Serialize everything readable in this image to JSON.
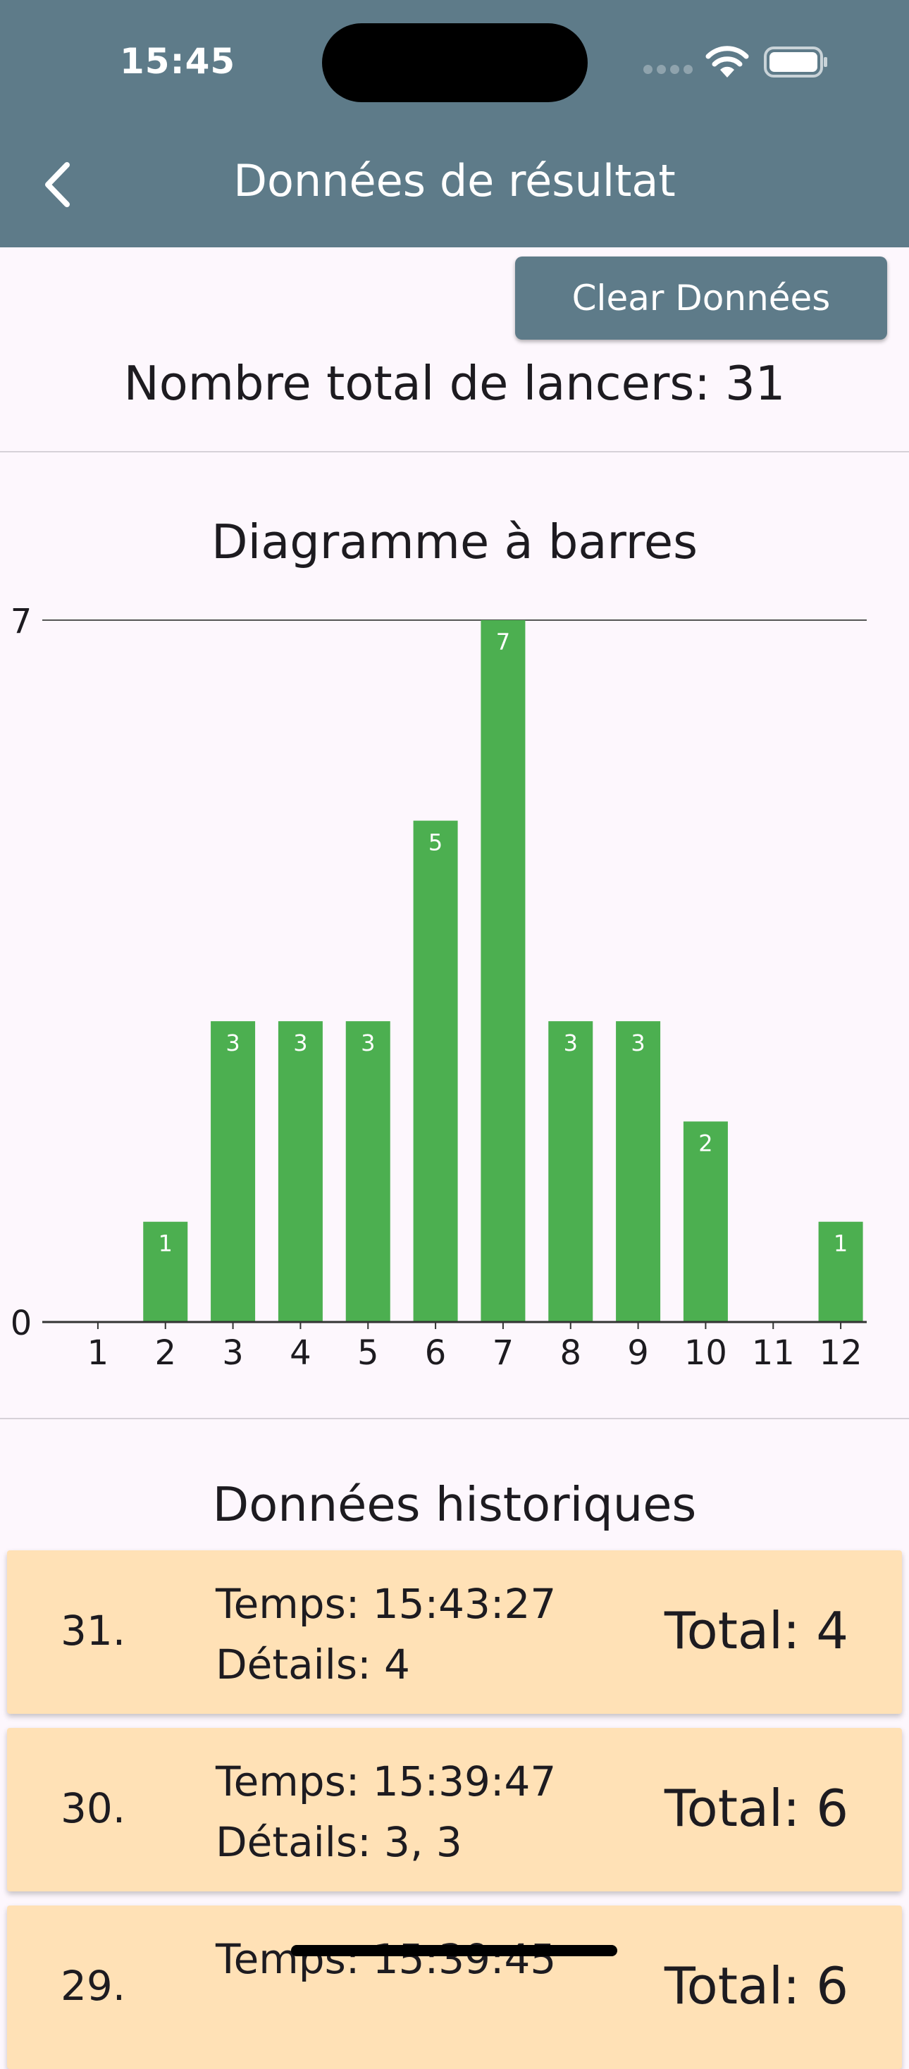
{
  "status_bar": {
    "time": "15:45"
  },
  "header": {
    "title": "Données de résultat"
  },
  "toolbar": {
    "clear_label": "Clear Données"
  },
  "summary": {
    "total_throws": "Nombre total de lancers: 31"
  },
  "chart_section": {
    "title": "Diagramme à barres"
  },
  "chart_data": {
    "type": "bar",
    "title": "Diagramme à barres",
    "categories": [
      "1",
      "2",
      "3",
      "4",
      "5",
      "6",
      "7",
      "8",
      "9",
      "10",
      "11",
      "12"
    ],
    "values": [
      0,
      1,
      3,
      3,
      3,
      5,
      7,
      3,
      3,
      2,
      0,
      1
    ],
    "ylim": [
      0,
      7
    ],
    "y_ticks": [
      "0",
      "7"
    ],
    "bar_color": "#4caf50",
    "grid": false
  },
  "history": {
    "title": "Données historiques",
    "items": [
      {
        "index": "31.",
        "time": "Temps: 15:43:27",
        "details": "Détails: 4",
        "total": "Total: 4"
      },
      {
        "index": "30.",
        "time": "Temps: 15:39:47",
        "details": "Détails: 3, 3",
        "total": "Total: 6"
      },
      {
        "index": "29.",
        "time": "Temps: 15:39:45",
        "details": "",
        "total": "Total: 6"
      }
    ]
  },
  "colors": {
    "appbar": "#5e7b89",
    "background": "#fdf7fd",
    "card": "#ffe1b6",
    "bar": "#4caf50"
  }
}
